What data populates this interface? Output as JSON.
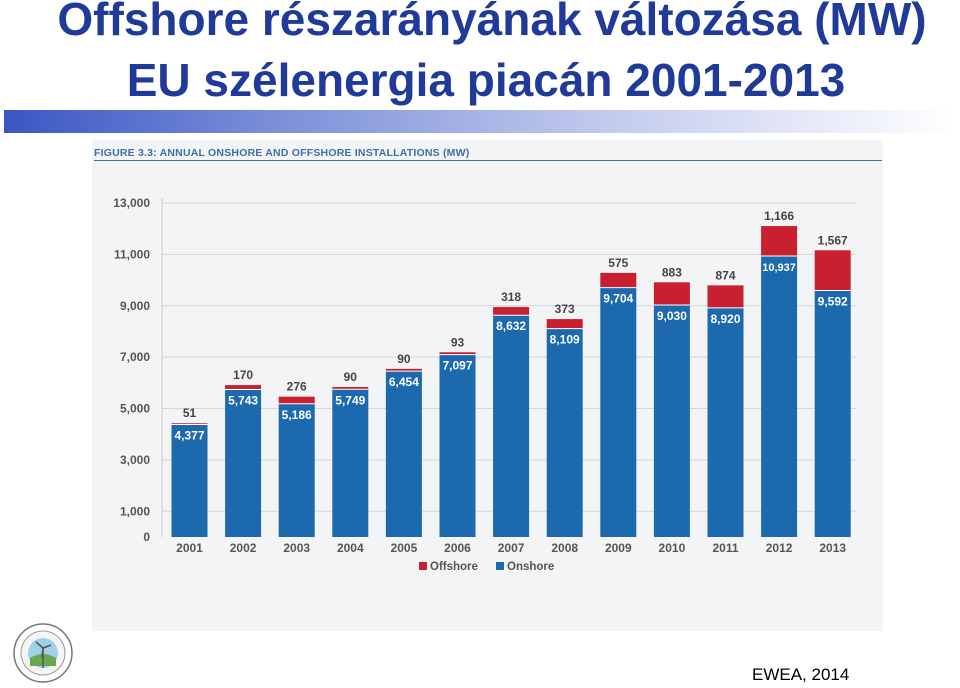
{
  "slide": {
    "title_line1": "Offshore részarányának változása (MW)",
    "title_line2": "EU szélenergia piacán 2001-2013",
    "source": "EWEA, 2014"
  },
  "colors": {
    "title": "#1f3a99",
    "onshore": "#1c6aad",
    "offshore": "#c8202f",
    "caption": "#3d6fa8"
  },
  "chart_data": {
    "type": "bar",
    "stacked": true,
    "title": "FIGURE 3.3: ANNUAL ONSHORE AND OFFSHORE INSTALLATIONS (MW)",
    "xlabel": "",
    "ylabel": "",
    "categories": [
      "2001",
      "2002",
      "2003",
      "2004",
      "2005",
      "2006",
      "2007",
      "2008",
      "2009",
      "2010",
      "2011",
      "2012",
      "2013"
    ],
    "series": [
      {
        "name": "Onshore",
        "color": "#1c6aad",
        "values": [
          4377,
          5743,
          5186,
          5749,
          6454,
          7097,
          8632,
          8109,
          9704,
          9030,
          8920,
          10937,
          9592
        ],
        "labels": [
          "4,377",
          "5,743",
          "5,186",
          "5,749",
          "6,454",
          "7,097",
          "8,632",
          "8,109",
          "9,704",
          "9,030",
          "8,920",
          "10,937",
          "9,592"
        ]
      },
      {
        "name": "Offshore",
        "color": "#c8202f",
        "values": [
          51,
          170,
          276,
          90,
          90,
          93,
          318,
          373,
          575,
          883,
          874,
          1166,
          1567
        ],
        "labels": [
          "51",
          "170",
          "276",
          "90",
          "90",
          "93",
          "318",
          "373",
          "575",
          "883",
          "874",
          "1,166",
          "1,567"
        ]
      }
    ],
    "yticks": [
      0,
      1000,
      3000,
      5000,
      7000,
      9000,
      11000,
      13000
    ],
    "ytick_labels": [
      "0",
      "1,000",
      "3,000",
      "5,000",
      "7,000",
      "9,000",
      "11,000",
      "13,000"
    ],
    "ylim": [
      0,
      13000
    ],
    "grid": true,
    "legend": [
      "Offshore",
      "Onshore"
    ],
    "legend_position": "bottom-center"
  }
}
